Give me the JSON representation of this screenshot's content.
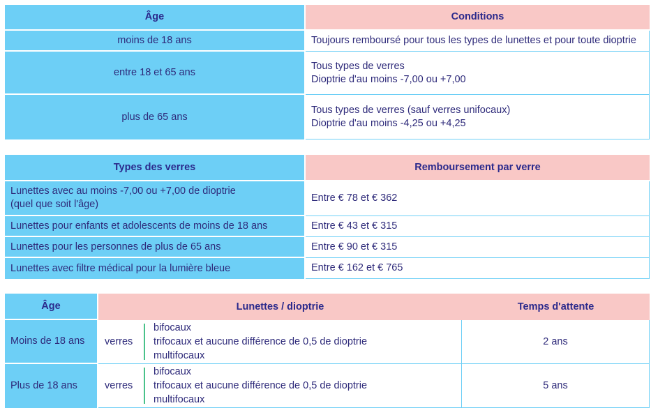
{
  "table1": {
    "headers": {
      "age": "Âge",
      "conditions": "Conditions"
    },
    "rows": [
      {
        "age": "moins de 18 ans",
        "conditions": [
          "Toujours remboursé pour tous les types de lunettes et pour toute dioptrie"
        ]
      },
      {
        "age": "entre 18 et 65 ans",
        "conditions": [
          "Tous types de verres",
          "Dioptrie d'au moins -7,00 ou +7,00"
        ]
      },
      {
        "age": "plus de 65 ans",
        "conditions": [
          "Tous types de verres (sauf verres unifocaux)",
          "Dioptrie d'au moins -4,25 ou +4,25"
        ]
      }
    ]
  },
  "table2": {
    "headers": {
      "types": "Types des verres",
      "remboursement": "Remboursement par verre"
    },
    "rows": [
      {
        "type": [
          "Lunettes avec au moins -7,00 ou +7,00 de dioptrie",
          "(quel que soit l'âge)"
        ],
        "montant": "Entre € 78 et € 362"
      },
      {
        "type": [
          "Lunettes pour enfants et adolescents de moins de 18 ans"
        ],
        "montant": "Entre € 43 et € 315"
      },
      {
        "type": [
          "Lunettes pour les personnes de plus de 65 ans"
        ],
        "montant": "Entre € 90 et € 315"
      },
      {
        "type": [
          "Lunettes avec filtre médical pour la lumière bleue"
        ],
        "montant": "Entre € 162 et € 765"
      }
    ]
  },
  "table3": {
    "headers": {
      "age": "Âge",
      "lunettes": "Lunettes / dioptrie",
      "attente": "Temps d'attente"
    },
    "rows": [
      {
        "age": "Moins de 18 ans",
        "verres": "verres",
        "items": [
          "bifocaux",
          "trifocaux et aucune différence de 0,5 de dioptrie",
          "multifocaux"
        ],
        "attente": "2 ans"
      },
      {
        "age": "Plus de 18 ans",
        "verres": "verres",
        "items": [
          "bifocaux",
          "trifocaux et aucune différence de 0,5 de dioptrie",
          "multifocaux"
        ],
        "attente": "5 ans"
      }
    ]
  },
  "colors": {
    "blue": "#6dcff6",
    "pink": "#f9c8c6",
    "text": "#2e2a7a",
    "accent_bar": "#49c28a"
  }
}
